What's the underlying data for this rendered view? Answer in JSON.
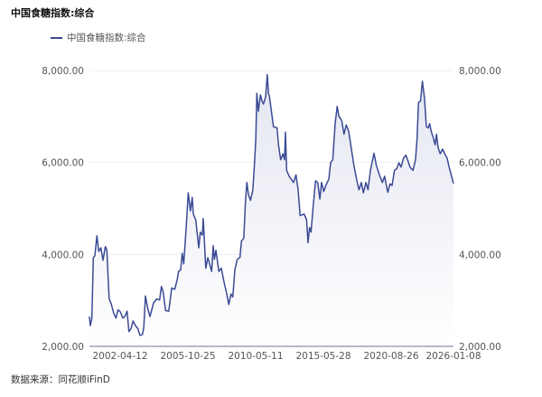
{
  "chart_data": {
    "type": "area",
    "title": "中国食糖指数:综合",
    "legend": {
      "entries": [
        "中国食糖指数:综合"
      ],
      "placement": "top-left"
    },
    "source": "数据来源：同花顺iFinD",
    "colors": {
      "line": "#3b4a94",
      "fill_top": "#e4e6f1",
      "grid": "#eceef4",
      "axis": "#b4b9cf"
    },
    "ylim": [
      2000,
      8000
    ],
    "y_ticks": [
      "2,000.00",
      "4,000.00",
      "6,000.00",
      "8,000.00"
    ],
    "y_tick_values": [
      2000,
      4000,
      6000,
      8000
    ],
    "y_axis_both_sides": true,
    "x_ticks": [
      "2002-04-12",
      "2005-10-25",
      "2010-05-11",
      "2015-05-28",
      "2020-08-26",
      "2026-01-08"
    ],
    "grid": true,
    "series": [
      {
        "name": "中国食糖指数:综合",
        "points": [
          [
            "2000-09-04",
            2650
          ],
          [
            "2000-09-20",
            2450
          ],
          [
            "2000-10-20",
            2615
          ],
          [
            "2000-11-17",
            3930
          ],
          [
            "2000-12-16",
            3970
          ],
          [
            "2001-01-25",
            4405
          ],
          [
            "2001-02-28",
            4065
          ],
          [
            "2001-04-10",
            4145
          ],
          [
            "2001-05-19",
            3870
          ],
          [
            "2001-07-04",
            4170
          ],
          [
            "2001-08-01",
            4090
          ],
          [
            "2001-09-13",
            3040
          ],
          [
            "2001-10-27",
            2910
          ],
          [
            "2001-12-13",
            2715
          ],
          [
            "2002-01-22",
            2615
          ],
          [
            "2002-03-02",
            2795
          ],
          [
            "2002-04-16",
            2750
          ],
          [
            "2002-06-02",
            2615
          ],
          [
            "2002-07-11",
            2650
          ],
          [
            "2002-08-22",
            2765
          ],
          [
            "2002-09-26",
            2320
          ],
          [
            "2002-11-05",
            2385
          ],
          [
            "2002-12-14",
            2550
          ],
          [
            "2003-01-30",
            2450
          ],
          [
            "2003-03-16",
            2385
          ],
          [
            "2003-04-25",
            2240
          ],
          [
            "2003-06-11",
            2255
          ],
          [
            "2003-07-08",
            2420
          ],
          [
            "2003-08-07",
            3095
          ],
          [
            "2003-09-16",
            2845
          ],
          [
            "2003-11-02",
            2650
          ],
          [
            "2004-01-10",
            2945
          ],
          [
            "2004-03-06",
            3030
          ],
          [
            "2004-05-04",
            3010
          ],
          [
            "2004-06-08",
            3305
          ],
          [
            "2004-07-12",
            3175
          ],
          [
            "2004-08-26",
            2780
          ],
          [
            "2004-10-24",
            2765
          ],
          [
            "2004-12-20",
            3270
          ],
          [
            "2005-02-16",
            3240
          ],
          [
            "2005-04-02",
            3435
          ],
          [
            "2005-05-01",
            3630
          ],
          [
            "2005-06-10",
            3665
          ],
          [
            "2005-07-09",
            4025
          ],
          [
            "2005-08-06",
            3795
          ],
          [
            "2005-09-22",
            4585
          ],
          [
            "2005-11-02",
            5340
          ],
          [
            "2005-12-25",
            4945
          ],
          [
            "2006-02-08",
            5240
          ],
          [
            "2006-03-07",
            4880
          ],
          [
            "2006-05-05",
            4750
          ],
          [
            "2006-07-17",
            4145
          ],
          [
            "2006-08-24",
            4485
          ],
          [
            "2006-10-14",
            4420
          ],
          [
            "2006-11-06",
            4780
          ],
          [
            "2007-01-05",
            3700
          ],
          [
            "2007-02-25",
            3930
          ],
          [
            "2007-05-29",
            3630
          ],
          [
            "2007-07-06",
            4190
          ],
          [
            "2007-08-04",
            3895
          ],
          [
            "2007-09-11",
            4090
          ],
          [
            "2007-11-23",
            3630
          ],
          [
            "2008-01-22",
            3700
          ],
          [
            "2008-04-04",
            3370
          ],
          [
            "2008-05-26",
            3175
          ],
          [
            "2008-07-22",
            2910
          ],
          [
            "2008-09-15",
            3140
          ],
          [
            "2008-10-28",
            3075
          ],
          [
            "2008-12-18",
            3665
          ],
          [
            "2009-02-17",
            3895
          ],
          [
            "2009-04-22",
            3930
          ],
          [
            "2009-05-28",
            4290
          ],
          [
            "2009-07-26",
            4355
          ],
          [
            "2009-09-03",
            5140
          ],
          [
            "2009-10-08",
            5565
          ],
          [
            "2009-11-15",
            5305
          ],
          [
            "2010-01-05",
            5175
          ],
          [
            "2010-03-04",
            5405
          ],
          [
            "2010-04-17",
            6030
          ],
          [
            "2010-05-17",
            6520
          ],
          [
            "2010-06-11",
            7505
          ],
          [
            "2010-07-23",
            7115
          ],
          [
            "2010-09-19",
            7470
          ],
          [
            "2010-10-30",
            7340
          ],
          [
            "2010-12-11",
            7270
          ],
          [
            "2011-02-07",
            7435
          ],
          [
            "2011-03-25",
            7910
          ],
          [
            "2011-04-26",
            7500
          ],
          [
            "2011-05-21",
            7435
          ],
          [
            "2011-09-07",
            6780
          ],
          [
            "2011-12-14",
            6750
          ],
          [
            "2012-01-23",
            6385
          ],
          [
            "2012-03-21",
            6060
          ],
          [
            "2012-05-24",
            6190
          ],
          [
            "2012-07-06",
            6060
          ],
          [
            "2012-07-30",
            6660
          ],
          [
            "2012-09-01",
            5830
          ],
          [
            "2012-11-07",
            5700
          ],
          [
            "2013-03-08",
            5565
          ],
          [
            "2013-05-13",
            5730
          ],
          [
            "2013-07-09",
            5405
          ],
          [
            "2013-09-04",
            4845
          ],
          [
            "2013-12-21",
            4880
          ],
          [
            "2014-02-24",
            4750
          ],
          [
            "2014-04-05",
            4255
          ],
          [
            "2014-05-16",
            4585
          ],
          [
            "2014-06-25",
            4485
          ],
          [
            "2014-08-23",
            5045
          ],
          [
            "2014-10-26",
            5600
          ],
          [
            "2014-12-25",
            5565
          ],
          [
            "2015-02-20",
            5205
          ],
          [
            "2015-04-09",
            5565
          ],
          [
            "2015-06-06",
            5370
          ],
          [
            "2015-08-06",
            5500
          ],
          [
            "2015-10-29",
            5635
          ],
          [
            "2015-12-19",
            5995
          ],
          [
            "2016-02-17",
            6060
          ],
          [
            "2016-04-25",
            6845
          ],
          [
            "2016-06-23",
            7220
          ],
          [
            "2016-08-06",
            7010
          ],
          [
            "2016-10-29",
            6910
          ],
          [
            "2016-12-30",
            6615
          ],
          [
            "2017-03-05",
            6815
          ],
          [
            "2017-05-13",
            6680
          ],
          [
            "2017-07-11",
            6385
          ],
          [
            "2017-10-07",
            5930
          ],
          [
            "2017-12-30",
            5600
          ],
          [
            "2018-02-28",
            5405
          ],
          [
            "2018-05-06",
            5565
          ],
          [
            "2018-07-04",
            5340
          ],
          [
            "2018-09-12",
            5565
          ],
          [
            "2018-11-10",
            5405
          ],
          [
            "2019-01-18",
            5830
          ],
          [
            "2019-04-28",
            6200
          ],
          [
            "2019-07-06",
            5930
          ],
          [
            "2019-09-29",
            5730
          ],
          [
            "2019-12-23",
            5565
          ],
          [
            "2020-02-23",
            5700
          ],
          [
            "2020-04-04",
            5535
          ],
          [
            "2020-05-24",
            5350
          ],
          [
            "2020-07-24",
            5535
          ],
          [
            "2020-09-23",
            5500
          ],
          [
            "2020-12-08",
            5830
          ],
          [
            "2021-02-21",
            5865
          ],
          [
            "2021-04-28",
            5995
          ],
          [
            "2021-07-03",
            5900
          ],
          [
            "2021-09-18",
            6095
          ],
          [
            "2021-12-01",
            6160
          ],
          [
            "2022-02-08",
            6030
          ],
          [
            "2022-04-13",
            5900
          ],
          [
            "2022-07-15",
            5830
          ],
          [
            "2022-10-01",
            6060
          ],
          [
            "2022-11-19",
            6520
          ],
          [
            "2023-01-04",
            7305
          ],
          [
            "2023-03-10",
            7340
          ],
          [
            "2023-05-07",
            7765
          ],
          [
            "2023-07-11",
            7400
          ],
          [
            "2023-09-07",
            6780
          ],
          [
            "2023-11-03",
            6750
          ],
          [
            "2023-12-20",
            6845
          ],
          [
            "2024-02-05",
            6680
          ],
          [
            "2024-04-21",
            6520
          ],
          [
            "2024-06-09",
            6385
          ],
          [
            "2024-07-24",
            6615
          ],
          [
            "2024-09-11",
            6320
          ],
          [
            "2024-11-16",
            6190
          ],
          [
            "2025-02-01",
            6290
          ],
          [
            "2025-04-06",
            6190
          ],
          [
            "2025-06-21",
            6095
          ],
          [
            "2025-08-26",
            5900
          ],
          [
            "2026-01-08",
            5545
          ]
        ]
      }
    ]
  }
}
